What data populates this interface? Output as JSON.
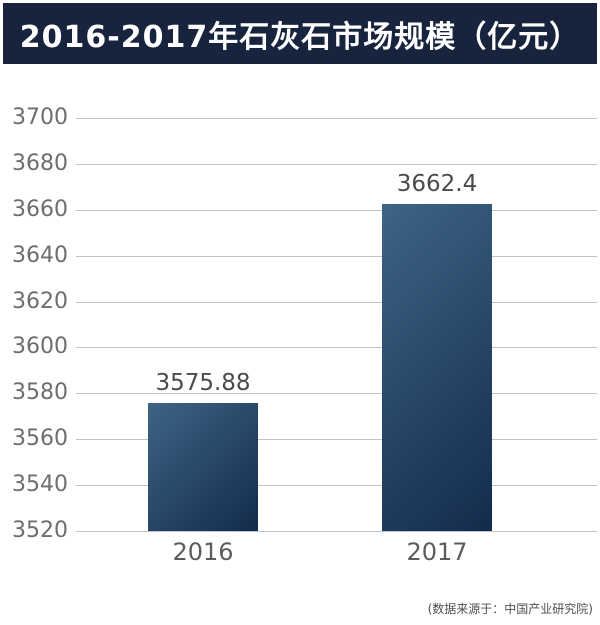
{
  "header": {
    "title": "2016-2017年石灰石市场规模（亿元）"
  },
  "chart_data": {
    "type": "bar",
    "title": "2016-2017年石灰石市场规模（亿元）",
    "categories": [
      "2016",
      "2017"
    ],
    "values": [
      3575.88,
      3662.4
    ],
    "value_labels": [
      "3575.88",
      "3662.4"
    ],
    "ylim": [
      3520,
      3700
    ],
    "yticks": [
      3520,
      3540,
      3560,
      3580,
      3600,
      3620,
      3640,
      3660,
      3680,
      3700
    ],
    "ytick_step": 20,
    "xlabel": "",
    "ylabel": "",
    "unit": "亿元",
    "grid": "horizontal-only",
    "legend": "none"
  },
  "footer": {
    "source": "(数据来源于：中国产业研究院)"
  },
  "colors": {
    "banner_bg": "#18243e",
    "title_text": "#ffffff",
    "bar_gradient_start": "#3e6486",
    "bar_gradient_end": "#132b4b",
    "gridline": "#c3c3c3",
    "tick_text": "#6e6e6e",
    "value_text": "#4b4b4b",
    "category_text": "#5c5c5c",
    "source_text": "#4f4f4f",
    "background": "#ffffff"
  }
}
